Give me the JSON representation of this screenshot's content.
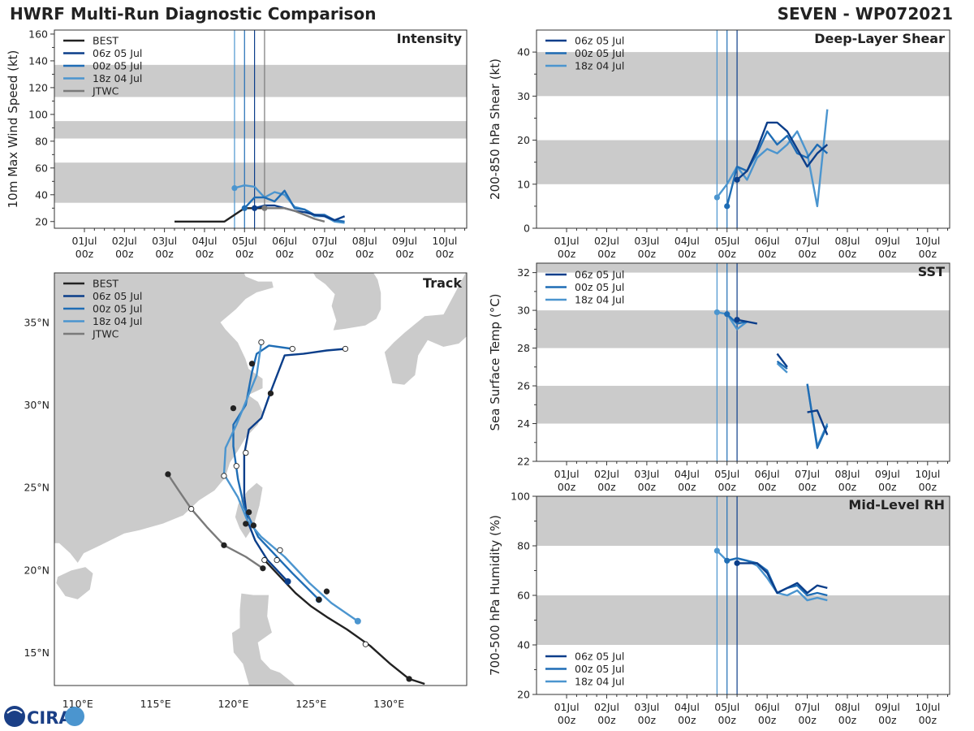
{
  "header": {
    "left": "HWRF Multi-Run Diagnostic Comparison",
    "right": "SEVEN - WP072021"
  },
  "colors": {
    "BEST": "#222222",
    "06z 05 Jul": "#0b3e8a",
    "00z 05 Jul": "#1f6db5",
    "18z 04 Jul": "#4b95cf",
    "JTWC": "#7a7a7a",
    "band": "#cbcbcb"
  },
  "time_axis": {
    "ticks": [
      {
        "day": 1,
        "label": "01Jul\n00z"
      },
      {
        "day": 2,
        "label": "02Jul\n00z"
      },
      {
        "day": 3,
        "label": "03Jul\n00z"
      },
      {
        "day": 4,
        "label": "04Jul\n00z"
      },
      {
        "day": 5,
        "label": "05Jul\n00z"
      },
      {
        "day": 6,
        "label": "06Jul\n00z"
      },
      {
        "day": 7,
        "label": "07Jul\n00z"
      },
      {
        "day": 8,
        "label": "08Jul\n00z"
      },
      {
        "day": 9,
        "label": "09Jul\n00z"
      },
      {
        "day": 10,
        "label": "10Jul\n00z"
      }
    ],
    "range": [
      0.25,
      10.55
    ]
  },
  "logo": {
    "text": "CIRA"
  },
  "chart_data": [
    {
      "id": "intensity",
      "type": "line",
      "title": "Intensity",
      "ylabel": "10m Max Wind Speed (kt)",
      "ylim": [
        15,
        163
      ],
      "yticks": [
        20,
        40,
        60,
        80,
        100,
        120,
        140,
        160
      ],
      "bands": [
        [
          34,
          64
        ],
        [
          82,
          95
        ],
        [
          113,
          137
        ]
      ],
      "init_lines": [
        {
          "t": 4.75,
          "series": "18z 04 Jul"
        },
        {
          "t": 5.0,
          "series": "00z 05 Jul"
        },
        {
          "t": 5.25,
          "series": "06z 05 Jul"
        },
        {
          "t": 5.5,
          "series": "JTWC"
        }
      ],
      "legend": [
        "BEST",
        "06z 05 Jul",
        "00z 05 Jul",
        "18z 04 Jul",
        "JTWC"
      ],
      "series": [
        {
          "name": "BEST",
          "t": [
            3.25,
            3.5,
            4.0,
            4.5,
            5.0,
            5.25,
            5.5
          ],
          "v": [
            20,
            20,
            20,
            20,
            30,
            30,
            30
          ]
        },
        {
          "name": "18z 04 Jul",
          "t": [
            4.75,
            5.0,
            5.25,
            5.5,
            5.75,
            6.0,
            6.25,
            6.5,
            6.75,
            7.0,
            7.25,
            7.5
          ],
          "v": [
            45,
            47,
            46,
            38,
            42,
            40,
            31,
            29,
            24,
            24,
            20,
            19
          ]
        },
        {
          "name": "00z 05 Jul",
          "t": [
            5.0,
            5.25,
            5.5,
            5.75,
            6.0,
            6.25,
            6.5,
            6.75,
            7.0,
            7.25,
            7.5
          ],
          "v": [
            30,
            38,
            38,
            35,
            43,
            30,
            29,
            25,
            25,
            21,
            20
          ]
        },
        {
          "name": "06z 05 Jul",
          "t": [
            5.25,
            5.5,
            5.75,
            6.0,
            6.25,
            6.5,
            6.75,
            7.0,
            7.25,
            7.5
          ],
          "v": [
            30,
            32,
            32,
            30,
            28,
            27,
            25,
            24,
            21,
            24
          ]
        },
        {
          "name": "JTWC",
          "t": [
            5.5,
            5.75,
            6.0,
            6.25,
            6.5,
            6.75,
            7.0
          ],
          "v": [
            30,
            30,
            30,
            28,
            25,
            22,
            20
          ]
        }
      ],
      "markers": [
        {
          "series": "18z 04 Jul",
          "t": 4.75,
          "v": 45
        },
        {
          "series": "00z 05 Jul",
          "t": 5.0,
          "v": 30
        },
        {
          "series": "06z 05 Jul",
          "t": 5.25,
          "v": 30
        },
        {
          "series": "JTWC",
          "t": 5.5,
          "v": 30
        }
      ]
    },
    {
      "id": "shear",
      "type": "line",
      "title": "Deep-Layer Shear",
      "ylabel": "200-850 hPa Shear (kt)",
      "ylim": [
        0,
        45
      ],
      "yticks": [
        0,
        10,
        20,
        30,
        40
      ],
      "bands": [
        [
          10,
          20
        ],
        [
          30,
          40
        ]
      ],
      "init_lines": [
        {
          "t": 4.75,
          "series": "18z 04 Jul"
        },
        {
          "t": 5.0,
          "series": "00z 05 Jul"
        },
        {
          "t": 5.25,
          "series": "06z 05 Jul"
        }
      ],
      "legend": [
        "06z 05 Jul",
        "00z 05 Jul",
        "18z 04 Jul"
      ],
      "series": [
        {
          "name": "18z 04 Jul",
          "t": [
            4.75,
            5.0,
            5.25,
            5.5,
            5.75,
            6.0,
            6.25,
            6.5,
            6.75,
            7.0,
            7.25,
            7.5
          ],
          "v": [
            7,
            10,
            14,
            11,
            16,
            18,
            17,
            19,
            22,
            17,
            5,
            27
          ]
        },
        {
          "name": "00z 05 Jul",
          "t": [
            5.0,
            5.25,
            5.5,
            5.75,
            6.0,
            6.25,
            6.5,
            6.75,
            7.0,
            7.25,
            7.5
          ],
          "v": [
            5,
            14,
            13,
            17,
            22,
            19,
            21,
            17,
            16,
            19,
            17
          ]
        },
        {
          "name": "06z 05 Jul",
          "t": [
            5.25,
            5.5,
            5.75,
            6.0,
            6.25,
            6.5,
            6.75,
            7.0,
            7.25,
            7.5
          ],
          "v": [
            11,
            13,
            18,
            24,
            24,
            22,
            18,
            14,
            17,
            19
          ]
        }
      ],
      "markers": [
        {
          "series": "18z 04 Jul",
          "t": 4.75,
          "v": 7
        },
        {
          "series": "00z 05 Jul",
          "t": 5.0,
          "v": 5
        },
        {
          "series": "06z 05 Jul",
          "t": 5.25,
          "v": 11
        }
      ]
    },
    {
      "id": "sst",
      "type": "line",
      "title": "SST",
      "ylabel": "Sea Surface Temp (°C)",
      "ylim": [
        22,
        32.5
      ],
      "yticks": [
        22,
        24,
        26,
        28,
        30,
        32
      ],
      "bands": [
        [
          24,
          26
        ],
        [
          28,
          30
        ],
        [
          32,
          32.5
        ]
      ],
      "init_lines": [
        {
          "t": 4.75,
          "series": "18z 04 Jul"
        },
        {
          "t": 5.0,
          "series": "00z 05 Jul"
        },
        {
          "t": 5.25,
          "series": "06z 05 Jul"
        }
      ],
      "legend": [
        "06z 05 Jul",
        "00z 05 Jul",
        "18z 04 Jul"
      ],
      "series": [
        {
          "name": "18z 04 Jul",
          "segments": [
            {
              "t": [
                4.75,
                5.0,
                5.25,
                5.5
              ],
              "v": [
                29.9,
                29.8,
                29.0,
                29.4
              ]
            },
            {
              "t": [
                6.25,
                6.5
              ],
              "v": [
                27.2,
                26.7
              ]
            },
            {
              "t": [
                7.0,
                7.25,
                7.5
              ],
              "v": [
                26.1,
                22.8,
                24.0
              ]
            }
          ]
        },
        {
          "name": "00z 05 Jul",
          "segments": [
            {
              "t": [
                5.0,
                5.25,
                5.5
              ],
              "v": [
                29.8,
                29.3,
                29.4
              ]
            },
            {
              "t": [
                6.25,
                6.5
              ],
              "v": [
                27.3,
                26.9
              ]
            },
            {
              "t": [
                7.0,
                7.25,
                7.5
              ],
              "v": [
                26.1,
                22.7,
                23.9
              ]
            }
          ]
        },
        {
          "name": "06z 05 Jul",
          "segments": [
            {
              "t": [
                5.25,
                5.5,
                5.75
              ],
              "v": [
                29.5,
                29.4,
                29.3
              ]
            },
            {
              "t": [
                6.25,
                6.5
              ],
              "v": [
                27.7,
                27.0
              ]
            },
            {
              "t": [
                7.0,
                7.25,
                7.5
              ],
              "v": [
                24.6,
                24.7,
                23.4
              ]
            }
          ]
        }
      ],
      "markers": [
        {
          "series": "18z 04 Jul",
          "t": 4.75,
          "v": 29.9
        },
        {
          "series": "00z 05 Jul",
          "t": 5.0,
          "v": 29.8
        },
        {
          "series": "06z 05 Jul",
          "t": 5.25,
          "v": 29.5
        }
      ]
    },
    {
      "id": "rh",
      "type": "line",
      "title": "Mid-Level RH",
      "ylabel": "700-500 hPa Humidity (%)",
      "ylim": [
        20,
        100
      ],
      "yticks": [
        20,
        40,
        60,
        80,
        100
      ],
      "bands": [
        [
          40,
          60
        ],
        [
          80,
          100
        ]
      ],
      "init_lines": [
        {
          "t": 4.75,
          "series": "18z 04 Jul"
        },
        {
          "t": 5.0,
          "series": "00z 05 Jul"
        },
        {
          "t": 5.25,
          "series": "06z 05 Jul"
        }
      ],
      "legend": [
        "06z 05 Jul",
        "00z 05 Jul",
        "18z 04 Jul"
      ],
      "series": [
        {
          "name": "18z 04 Jul",
          "t": [
            4.75,
            5.0,
            5.25,
            5.5,
            5.75,
            6.0,
            6.25,
            6.5,
            6.75,
            7.0,
            7.25,
            7.5
          ],
          "v": [
            78,
            74,
            75,
            74,
            72,
            67,
            61,
            60,
            62,
            58,
            59,
            58
          ]
        },
        {
          "name": "00z 05 Jul",
          "t": [
            5.0,
            5.25,
            5.5,
            5.75,
            6.0,
            6.25,
            6.5,
            6.75,
            7.0,
            7.25,
            7.5
          ],
          "v": [
            74,
            75,
            74,
            73,
            70,
            61,
            63,
            64,
            60,
            61,
            60
          ]
        },
        {
          "name": "06z 05 Jul",
          "t": [
            5.25,
            5.5,
            5.75,
            6.0,
            6.25,
            6.5,
            6.75,
            7.0,
            7.25,
            7.5
          ],
          "v": [
            73,
            73,
            73,
            69,
            61,
            63,
            65,
            61,
            64,
            63
          ]
        }
      ],
      "markers": [
        {
          "series": "18z 04 Jul",
          "t": 4.75,
          "v": 78
        },
        {
          "series": "00z 05 Jul",
          "t": 5.0,
          "v": 74
        },
        {
          "series": "06z 05 Jul",
          "t": 5.25,
          "v": 73
        }
      ]
    },
    {
      "id": "track",
      "type": "map",
      "title": "Track",
      "xlim": [
        108.5,
        135.0
      ],
      "ylim": [
        13.0,
        38.0
      ],
      "xticks": [
        {
          "v": 110,
          "label": "110°E"
        },
        {
          "v": 115,
          "label": "115°E"
        },
        {
          "v": 120,
          "label": "120°E"
        },
        {
          "v": 125,
          "label": "125°E"
        },
        {
          "v": 130,
          "label": "130°E"
        }
      ],
      "yticks": [
        {
          "v": 15,
          "label": "15°N"
        },
        {
          "v": 20,
          "label": "20°N"
        },
        {
          "v": 25,
          "label": "25°N"
        },
        {
          "v": 30,
          "label": "30°N"
        },
        {
          "v": 35,
          "label": "35°N"
        }
      ],
      "legend": [
        "BEST",
        "06z 05 Jul",
        "00z 05 Jul",
        "18z 04 Jul",
        "JTWC"
      ],
      "series": [
        {
          "name": "BEST",
          "lon": [
            132.3,
            131.3,
            130.1,
            128.8,
            127.3,
            126.1,
            125.0,
            124.0,
            123.0,
            122.0
          ],
          "lat": [
            13.1,
            13.4,
            14.3,
            15.4,
            16.4,
            17.1,
            17.8,
            18.6,
            19.6,
            20.6
          ],
          "filled": [
            1,
            0,
            1,
            0
          ],
          "dots": [
            [
              131.3,
              13.4,
              1
            ],
            [
              128.5,
              15.5,
              0
            ],
            [
              126.0,
              18.7,
              1
            ],
            [
              123.5,
              19.3,
              1
            ],
            [
              122.0,
              20.6,
              0
            ]
          ]
        },
        {
          "name": "06z 05 Jul",
          "lon": [
            123.5,
            122.2,
            121.4,
            120.9,
            120.7,
            120.7,
            121.0,
            121.8,
            122.4,
            123.3,
            124.5,
            126.0,
            127.2
          ],
          "lat": [
            19.3,
            20.6,
            21.8,
            23.0,
            24.5,
            27.0,
            28.5,
            29.2,
            30.8,
            33.0,
            33.1,
            33.3,
            33.4
          ],
          "dots": [
            [
              123.5,
              19.3,
              1
            ],
            [
              121.0,
              23.5,
              1
            ],
            [
              120.8,
              27.1,
              0
            ],
            [
              122.4,
              30.7,
              1
            ],
            [
              127.2,
              33.4,
              0
            ]
          ]
        },
        {
          "name": "00z 05 Jul",
          "lon": [
            125.5,
            123.8,
            122.6,
            121.6,
            120.7,
            120.3,
            120.0,
            120.0,
            120.8,
            121.2,
            121.5,
            122.3,
            123.8
          ],
          "lat": [
            18.2,
            19.8,
            21.0,
            22.0,
            23.8,
            25.5,
            27.5,
            28.8,
            30.0,
            32.0,
            33.1,
            33.6,
            33.4
          ],
          "dots": [
            [
              125.5,
              18.2,
              1
            ],
            [
              122.8,
              20.6,
              0
            ],
            [
              121.3,
              22.7,
              1
            ],
            [
              120.2,
              26.3,
              0
            ],
            [
              120.0,
              29.8,
              1
            ],
            [
              121.2,
              32.5,
              1
            ],
            [
              123.8,
              33.4,
              0
            ]
          ]
        },
        {
          "name": "18z 04 Jul",
          "lon": [
            128.0,
            126.3,
            124.9,
            123.3,
            121.8,
            120.9,
            120.3,
            119.4,
            119.5,
            120.2,
            121.5,
            121.8
          ],
          "lat": [
            16.9,
            18.0,
            19.2,
            20.8,
            22.0,
            23.0,
            24.4,
            25.8,
            27.4,
            28.8,
            31.8,
            33.8
          ],
          "dots": [
            [
              128.0,
              16.9,
              1
            ],
            [
              125.5,
              18.2,
              1
            ],
            [
              123.0,
              21.2,
              0
            ],
            [
              120.8,
              22.8,
              1
            ],
            [
              119.4,
              25.7,
              0
            ],
            [
              121.8,
              33.8,
              0
            ]
          ]
        },
        {
          "name": "JTWC",
          "lon": [
            121.9,
            120.8,
            119.4,
            118.3,
            117.3,
            116.5,
            115.8
          ],
          "lat": [
            20.1,
            20.8,
            21.5,
            22.6,
            23.7,
            24.8,
            25.8
          ],
          "dots": [
            [
              115.8,
              25.8,
              1
            ],
            [
              117.3,
              23.7,
              0
            ],
            [
              119.4,
              21.5,
              1
            ],
            [
              121.9,
              20.1,
              1
            ]
          ]
        }
      ]
    }
  ]
}
